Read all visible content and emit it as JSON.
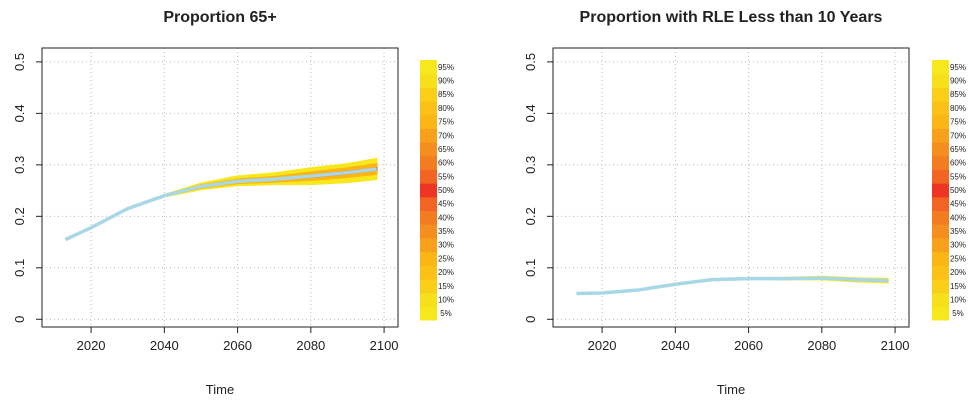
{
  "chart_data": [
    {
      "type": "fan",
      "title": "Proportion 65+",
      "x_label": "Time",
      "x": [
        2013,
        2020,
        2030,
        2040,
        2050,
        2060,
        2070,
        2080,
        2090,
        2098
      ],
      "xlim": [
        2006.6,
        2103.8
      ],
      "xticks": [
        2020,
        2040,
        2060,
        2080,
        2100
      ],
      "ylim": [
        -0.015,
        0.527
      ],
      "yticks": [
        0.0,
        0.1,
        0.2,
        0.3,
        0.4,
        0.5
      ],
      "grid": true,
      "bands": [
        {
          "color": "#f6e81c",
          "lower": [
            0.155,
            0.178,
            0.215,
            0.238,
            0.252,
            0.26,
            0.262,
            0.262,
            0.266,
            0.272
          ],
          "upper": [
            0.155,
            0.178,
            0.215,
            0.242,
            0.264,
            0.278,
            0.284,
            0.294,
            0.302,
            0.312
          ]
        },
        {
          "color": "#fbb515",
          "lower": [
            0.155,
            0.178,
            0.215,
            0.239,
            0.255,
            0.264,
            0.267,
            0.27,
            0.276,
            0.282
          ],
          "upper": [
            0.155,
            0.178,
            0.215,
            0.241,
            0.261,
            0.272,
            0.277,
            0.286,
            0.294,
            0.302
          ]
        },
        {
          "color": "#ee3524",
          "lower": [
            0.155,
            0.178,
            0.215,
            0.24,
            0.257,
            0.267,
            0.271,
            0.276,
            0.283,
            0.29
          ],
          "upper": [
            0.155,
            0.178,
            0.215,
            0.24,
            0.259,
            0.269,
            0.273,
            0.28,
            0.287,
            0.294
          ]
        }
      ],
      "median": {
        "color": "#a8d8e6",
        "values": [
          0.155,
          0.178,
          0.215,
          0.24,
          0.258,
          0.268,
          0.272,
          0.278,
          0.285,
          0.292
        ]
      },
      "colorbar": {
        "labels": [
          "5%",
          "10%",
          "15%",
          "20%",
          "25%",
          "30%",
          "35%",
          "40%",
          "45%",
          "50%",
          "55%",
          "60%",
          "65%",
          "70%",
          "75%",
          "80%",
          "85%",
          "90%",
          "95%"
        ],
        "colors": [
          "#f6e81c",
          "#f7df1b",
          "#f9cf18",
          "#fbc117",
          "#fbb515",
          "#f9a01b",
          "#f68e1f",
          "#f47c20",
          "#f26422",
          "#ee3524",
          "#f26422",
          "#f47c20",
          "#f68e1f",
          "#f9a01b",
          "#fbb515",
          "#fbc117",
          "#f9cf18",
          "#f7df1b",
          "#f6e81c"
        ]
      }
    },
    {
      "type": "fan",
      "title": "Proportion with RLE Less than 10 Years",
      "x_label": "Time",
      "x": [
        2013,
        2020,
        2030,
        2040,
        2050,
        2060,
        2070,
        2080,
        2090,
        2098
      ],
      "xlim": [
        2006.6,
        2103.8
      ],
      "xticks": [
        2020,
        2040,
        2060,
        2080,
        2100
      ],
      "ylim": [
        -0.015,
        0.527
      ],
      "yticks": [
        0.0,
        0.1,
        0.2,
        0.3,
        0.4,
        0.5
      ],
      "grid": true,
      "bands": [
        {
          "color": "#f6e81c",
          "lower": [
            0.05,
            0.051,
            0.057,
            0.068,
            0.076,
            0.078,
            0.077,
            0.077,
            0.073,
            0.071
          ],
          "upper": [
            0.05,
            0.051,
            0.057,
            0.068,
            0.078,
            0.08,
            0.081,
            0.083,
            0.08,
            0.079
          ]
        },
        {
          "color": "#fbb515",
          "lower": [
            0.05,
            0.051,
            0.057,
            0.068,
            0.0765,
            0.0785,
            0.0778,
            0.0785,
            0.0752,
            0.0732
          ],
          "upper": [
            0.05,
            0.051,
            0.057,
            0.068,
            0.0775,
            0.0795,
            0.0802,
            0.0815,
            0.0788,
            0.0768
          ]
        }
      ],
      "median": {
        "color": "#a8d8e6",
        "values": [
          0.05,
          0.051,
          0.057,
          0.068,
          0.077,
          0.079,
          0.079,
          0.08,
          0.077,
          0.075
        ]
      },
      "colorbar": {
        "labels": [
          "5%",
          "10%",
          "15%",
          "20%",
          "25%",
          "30%",
          "35%",
          "40%",
          "45%",
          "50%",
          "55%",
          "60%",
          "65%",
          "70%",
          "75%",
          "80%",
          "85%",
          "90%",
          "95%"
        ],
        "colors": [
          "#f6e81c",
          "#f7df1b",
          "#f9cf18",
          "#fbc117",
          "#fbb515",
          "#f9a01b",
          "#f68e1f",
          "#f47c20",
          "#f26422",
          "#ee3524",
          "#f26422",
          "#f47c20",
          "#f68e1f",
          "#f9a01b",
          "#fbb515",
          "#fbc117",
          "#f9cf18",
          "#f7df1b",
          "#f6e81c"
        ]
      }
    }
  ]
}
